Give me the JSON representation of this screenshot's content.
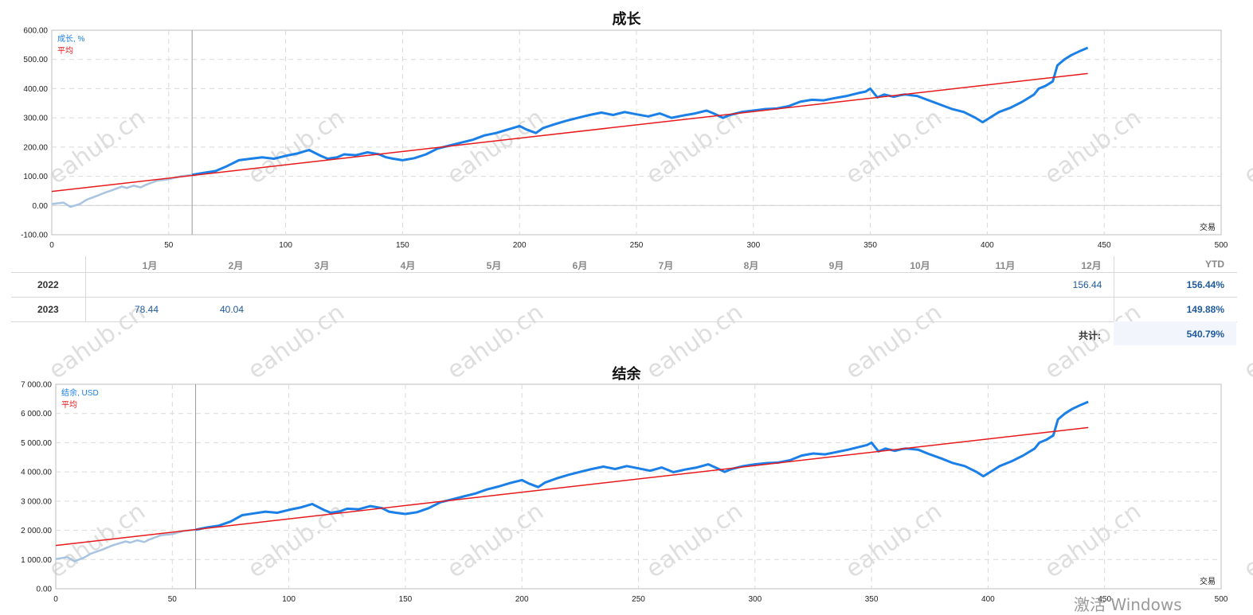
{
  "watermark": "eahub.cn",
  "windows_notice": "激活 Windows",
  "charts": {
    "growth": {
      "title": "成长",
      "legend_series": "成长, %",
      "legend_avg": "平均",
      "xlabel": "交易"
    },
    "balance": {
      "title": "结余",
      "legend_series": "结余, USD",
      "legend_avg": "平均",
      "xlabel": "交易"
    }
  },
  "table": {
    "months": [
      "1月",
      "2月",
      "3月",
      "4月",
      "5月",
      "6月",
      "7月",
      "8月",
      "9月",
      "10月",
      "11月",
      "12月"
    ],
    "ytd_header": "YTD",
    "rows": [
      {
        "year": "2022",
        "dec": "156.44",
        "ytd": "156.44%"
      },
      {
        "year": "2023",
        "jan": "78.44",
        "feb": "40.04",
        "ytd": "149.88%"
      }
    ],
    "total_label": "共计:",
    "total_value": "540.79%"
  },
  "colors": {
    "series": "#1a7fe6",
    "series_early": "#a8c4e0",
    "average": "#e8191b",
    "grid": "#d9d9d9"
  },
  "chart_data": [
    {
      "type": "line",
      "title": "成长",
      "xlabel": "交易",
      "ylabel": "",
      "xlim": [
        0,
        500
      ],
      "ylim": [
        -100,
        600
      ],
      "xticks": [
        0,
        50,
        100,
        150,
        200,
        250,
        300,
        350,
        400,
        450,
        500
      ],
      "yticks": [
        "-100.00",
        "0.00",
        "100.00",
        "200.00",
        "300.00",
        "400.00",
        "500.00",
        "600.00"
      ],
      "marker_x": 60,
      "series": [
        {
          "name": "成长, %",
          "x": [
            0,
            5,
            8,
            12,
            15,
            20,
            23,
            25,
            30,
            32,
            35,
            38,
            40,
            45,
            50,
            55,
            60,
            65,
            70,
            75,
            80,
            85,
            90,
            95,
            100,
            105,
            110,
            115,
            118,
            122,
            125,
            130,
            135,
            140,
            143,
            146,
            150,
            155,
            160,
            165,
            170,
            175,
            180,
            185,
            190,
            195,
            200,
            203,
            207,
            210,
            215,
            220,
            225,
            230,
            235,
            240,
            245,
            250,
            255,
            260,
            265,
            270,
            275,
            280,
            283,
            287,
            290,
            295,
            300,
            305,
            310,
            315,
            320,
            325,
            330,
            335,
            340,
            345,
            348,
            350,
            353,
            356,
            360,
            363,
            365,
            370,
            375,
            380,
            385,
            390,
            395,
            398,
            400,
            403,
            405,
            410,
            415,
            420,
            422,
            425,
            428,
            430,
            433,
            436,
            440,
            443
          ],
          "y": [
            5,
            10,
            -5,
            5,
            20,
            35,
            45,
            50,
            65,
            60,
            68,
            62,
            70,
            85,
            90,
            100,
            105,
            112,
            118,
            135,
            155,
            160,
            165,
            160,
            170,
            178,
            190,
            170,
            160,
            165,
            175,
            172,
            182,
            175,
            165,
            160,
            155,
            162,
            175,
            195,
            205,
            215,
            225,
            240,
            248,
            260,
            272,
            260,
            248,
            265,
            278,
            290,
            300,
            310,
            318,
            310,
            320,
            312,
            305,
            315,
            300,
            308,
            315,
            325,
            315,
            300,
            310,
            320,
            325,
            330,
            332,
            340,
            355,
            362,
            360,
            368,
            375,
            385,
            390,
            400,
            370,
            380,
            372,
            378,
            380,
            375,
            360,
            345,
            330,
            320,
            300,
            285,
            295,
            310,
            320,
            335,
            355,
            380,
            400,
            410,
            425,
            480,
            500,
            515,
            530,
            540
          ]
        },
        {
          "name": "平均",
          "x": [
            0,
            443
          ],
          "y": [
            48,
            452
          ]
        }
      ]
    },
    {
      "type": "line",
      "title": "结余",
      "xlabel": "交易",
      "ylabel": "",
      "xlim": [
        0,
        500
      ],
      "ylim": [
        0,
        7000
      ],
      "xticks": [
        0,
        50,
        100,
        150,
        200,
        250,
        300,
        350,
        400,
        450,
        500
      ],
      "yticks": [
        "0.00",
        "1 000.00",
        "2 000.00",
        "3 000.00",
        "4 000.00",
        "5 000.00",
        "6 000.00",
        "7 000.00"
      ],
      "marker_x": 60,
      "series": [
        {
          "name": "结余, USD",
          "x": [
            0,
            5,
            8,
            12,
            15,
            20,
            23,
            25,
            30,
            32,
            35,
            38,
            40,
            45,
            50,
            55,
            60,
            65,
            70,
            75,
            80,
            85,
            90,
            95,
            100,
            105,
            110,
            115,
            118,
            122,
            125,
            130,
            135,
            140,
            143,
            146,
            150,
            155,
            160,
            165,
            170,
            175,
            180,
            185,
            190,
            195,
            200,
            203,
            207,
            210,
            215,
            220,
            225,
            230,
            235,
            240,
            245,
            250,
            255,
            260,
            265,
            270,
            275,
            280,
            283,
            287,
            290,
            295,
            300,
            305,
            310,
            315,
            320,
            325,
            330,
            335,
            340,
            345,
            348,
            350,
            353,
            356,
            360,
            363,
            365,
            370,
            375,
            380,
            385,
            390,
            395,
            398,
            400,
            403,
            405,
            410,
            415,
            420,
            422,
            425,
            428,
            430,
            433,
            436,
            440,
            443
          ],
          "y": [
            1020,
            1080,
            940,
            1060,
            1200,
            1340,
            1440,
            1500,
            1620,
            1580,
            1660,
            1600,
            1680,
            1830,
            1870,
            1980,
            2020,
            2100,
            2160,
            2300,
            2520,
            2580,
            2640,
            2600,
            2700,
            2780,
            2900,
            2700,
            2600,
            2650,
            2740,
            2720,
            2830,
            2760,
            2640,
            2600,
            2560,
            2620,
            2760,
            2960,
            3060,
            3160,
            3260,
            3400,
            3500,
            3620,
            3720,
            3600,
            3480,
            3640,
            3780,
            3900,
            4000,
            4100,
            4180,
            4100,
            4200,
            4120,
            4040,
            4150,
            3990,
            4080,
            4150,
            4260,
            4150,
            4000,
            4100,
            4200,
            4260,
            4300,
            4320,
            4400,
            4560,
            4630,
            4600,
            4680,
            4760,
            4860,
            4920,
            5000,
            4700,
            4800,
            4720,
            4780,
            4800,
            4760,
            4600,
            4460,
            4300,
            4200,
            4000,
            3850,
            3950,
            4100,
            4200,
            4360,
            4560,
            4800,
            5000,
            5100,
            5250,
            5800,
            6000,
            6150,
            6300,
            6400
          ]
        },
        {
          "name": "平均",
          "x": [
            0,
            443
          ],
          "y": [
            1480,
            5520
          ]
        }
      ]
    }
  ]
}
